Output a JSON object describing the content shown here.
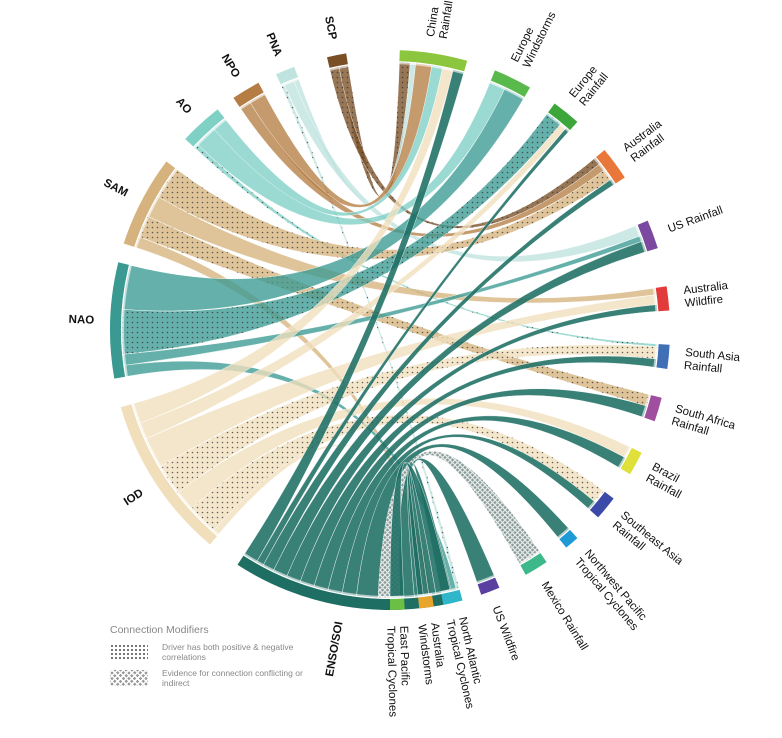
{
  "drivers": [
    {
      "id": "SCP",
      "label": "SCP",
      "color": "#7a4f26"
    },
    {
      "id": "PNA",
      "label": "PNA",
      "color": "#bfe3df"
    },
    {
      "id": "NPO",
      "label": "NPO",
      "color": "#b57d44"
    },
    {
      "id": "AO",
      "label": "AO",
      "color": "#7fd0c5"
    },
    {
      "id": "SAM",
      "label": "SAM",
      "color": "#d6b37e"
    },
    {
      "id": "NAO",
      "label": "NAO",
      "color": "#3a9a92"
    },
    {
      "id": "IOD",
      "label": "IOD",
      "color": "#f1dfbc"
    },
    {
      "id": "ENSO",
      "label": "ENSO/SOI",
      "color": "#1e6e64"
    }
  ],
  "impacts": [
    {
      "id": "china_rain",
      "lines": [
        "China",
        "Rainfall"
      ],
      "color": "#8cc63f"
    },
    {
      "id": "eu_wind",
      "lines": [
        "Europe",
        "Windstorms"
      ],
      "color": "#59b94b"
    },
    {
      "id": "eu_rain",
      "lines": [
        "Europe",
        "Rainfall"
      ],
      "color": "#3da63a"
    },
    {
      "id": "au_rain",
      "lines": [
        "Australia",
        "Rainfall"
      ],
      "color": "#e9773a"
    },
    {
      "id": "us_rain",
      "lines": [
        "US Rainfall"
      ],
      "color": "#7b4aa0"
    },
    {
      "id": "au_fire",
      "lines": [
        "Australia",
        "Wildfire"
      ],
      "color": "#e23b3b"
    },
    {
      "id": "sa_rain",
      "lines": [
        "South Asia",
        "Rainfall"
      ],
      "color": "#3f6fb5"
    },
    {
      "id": "saf_rain",
      "lines": [
        "South Africa",
        "Rainfall"
      ],
      "color": "#a04fa0"
    },
    {
      "id": "br_rain",
      "lines": [
        "Brazil",
        "Rainfall"
      ],
      "color": "#dfe03a"
    },
    {
      "id": "sea_rain",
      "lines": [
        "Southeast Asia",
        "Rainfall"
      ],
      "color": "#3b4aa8"
    },
    {
      "id": "nwp_tc",
      "lines": [
        "Northwest Pacific",
        "Tropical Cyclones"
      ],
      "color": "#1e9bd7"
    },
    {
      "id": "mx_rain",
      "lines": [
        "Mexico Rainfall"
      ],
      "color": "#3db88a"
    },
    {
      "id": "us_fire",
      "lines": [
        "US Wildfire"
      ],
      "color": "#5a3fa0"
    },
    {
      "id": "nat_tc",
      "lines": [
        "North Atlantic",
        "Tropical Cyclones"
      ],
      "color": "#2fb6c9"
    },
    {
      "id": "au_wind",
      "lines": [
        "Australia",
        "Windstorms"
      ],
      "color": "#e8a52e"
    },
    {
      "id": "ep_tc",
      "lines": [
        "East Pacific",
        "Tropical Cyclones"
      ],
      "color": "#6cbf45"
    }
  ],
  "links": [
    {
      "from": "SCP",
      "to": "china_rain",
      "w": 1,
      "mod": "mixed"
    },
    {
      "from": "SCP",
      "to": "au_rain",
      "w": 1,
      "mod": "mixed"
    },
    {
      "from": "PNA",
      "to": "china_rain",
      "w": 0.5,
      "mod": "none"
    },
    {
      "from": "PNA",
      "to": "us_rain",
      "w": 1,
      "mod": "none"
    },
    {
      "from": "PNA",
      "to": "nat_tc",
      "w": 0.3,
      "mod": "mixed"
    },
    {
      "from": "NPO",
      "to": "china_rain",
      "w": 1.5,
      "mod": "none"
    },
    {
      "from": "NPO",
      "to": "au_rain",
      "w": 1,
      "mod": "none"
    },
    {
      "from": "AO",
      "to": "china_rain",
      "w": 1,
      "mod": "none"
    },
    {
      "from": "AO",
      "to": "eu_wind",
      "w": 1.5,
      "mod": "none"
    },
    {
      "from": "AO",
      "to": "sa_rain",
      "w": 0.3,
      "mod": "mixed"
    },
    {
      "from": "SAM",
      "to": "au_rain",
      "w": 1.5,
      "mod": "mixed"
    },
    {
      "from": "SAM",
      "to": "au_fire",
      "w": 1,
      "mod": "none"
    },
    {
      "from": "SAM",
      "to": "saf_rain",
      "w": 1,
      "mod": "mixed"
    },
    {
      "from": "SAM",
      "to": "au_wind",
      "w": 0.5,
      "mod": "none"
    },
    {
      "from": "NAO",
      "to": "eu_wind",
      "w": 2,
      "mod": "none"
    },
    {
      "from": "NAO",
      "to": "eu_rain",
      "w": 2,
      "mod": "mixed"
    },
    {
      "from": "NAO",
      "to": "us_rain",
      "w": 0.5,
      "mod": "none"
    },
    {
      "from": "NAO",
      "to": "nat_tc",
      "w": 0.5,
      "mod": "none"
    },
    {
      "from": "IOD",
      "to": "china_rain",
      "w": 1,
      "mod": "none"
    },
    {
      "from": "IOD",
      "to": "eu_rain",
      "w": 0.8,
      "mod": "none"
    },
    {
      "from": "IOD",
      "to": "au_fire",
      "w": 1.5,
      "mod": "none"
    },
    {
      "from": "IOD",
      "to": "sa_rain",
      "w": 1.5,
      "mod": "mixed"
    },
    {
      "from": "IOD",
      "to": "br_rain",
      "w": 1,
      "mod": "none"
    },
    {
      "from": "IOD",
      "to": "sea_rain",
      "w": 1.5,
      "mod": "mixed"
    },
    {
      "from": "IOD",
      "to": "au_wind",
      "w": 0.3,
      "mod": "none"
    },
    {
      "from": "ENSO",
      "to": "china_rain",
      "w": 1,
      "mod": "none"
    },
    {
      "from": "ENSO",
      "to": "eu_rain",
      "w": 0.5,
      "mod": "none"
    },
    {
      "from": "ENSO",
      "to": "au_rain",
      "w": 0.8,
      "mod": "none"
    },
    {
      "from": "ENSO",
      "to": "us_rain",
      "w": 1,
      "mod": "none"
    },
    {
      "from": "ENSO",
      "to": "au_fire",
      "w": 1,
      "mod": "none"
    },
    {
      "from": "ENSO",
      "to": "sa_rain",
      "w": 1,
      "mod": "none"
    },
    {
      "from": "ENSO",
      "to": "saf_rain",
      "w": 1,
      "mod": "none"
    },
    {
      "from": "ENSO",
      "to": "br_rain",
      "w": 1,
      "mod": "none"
    },
    {
      "from": "ENSO",
      "to": "sea_rain",
      "w": 1,
      "mod": "none"
    },
    {
      "from": "ENSO",
      "to": "nwp_tc",
      "w": 1.5,
      "mod": "none"
    },
    {
      "from": "ENSO",
      "to": "mx_rain",
      "w": 1.5,
      "mod": "conflicting"
    },
    {
      "from": "ENSO",
      "to": "us_fire",
      "w": 1,
      "mod": "none"
    },
    {
      "from": "ENSO",
      "to": "nat_tc",
      "w": 1,
      "mod": "none"
    },
    {
      "from": "ENSO",
      "to": "au_wind",
      "w": 0.5,
      "mod": "none"
    },
    {
      "from": "ENSO",
      "to": "ep_tc",
      "w": 1,
      "mod": "none"
    }
  ],
  "legend": {
    "title": "Connection Modifiers",
    "items": [
      {
        "kind": "dots",
        "text": "Driver has both positive & negative correlations"
      },
      {
        "kind": "hatch",
        "text": "Evidence for connection conflicting or indirect"
      }
    ]
  }
}
